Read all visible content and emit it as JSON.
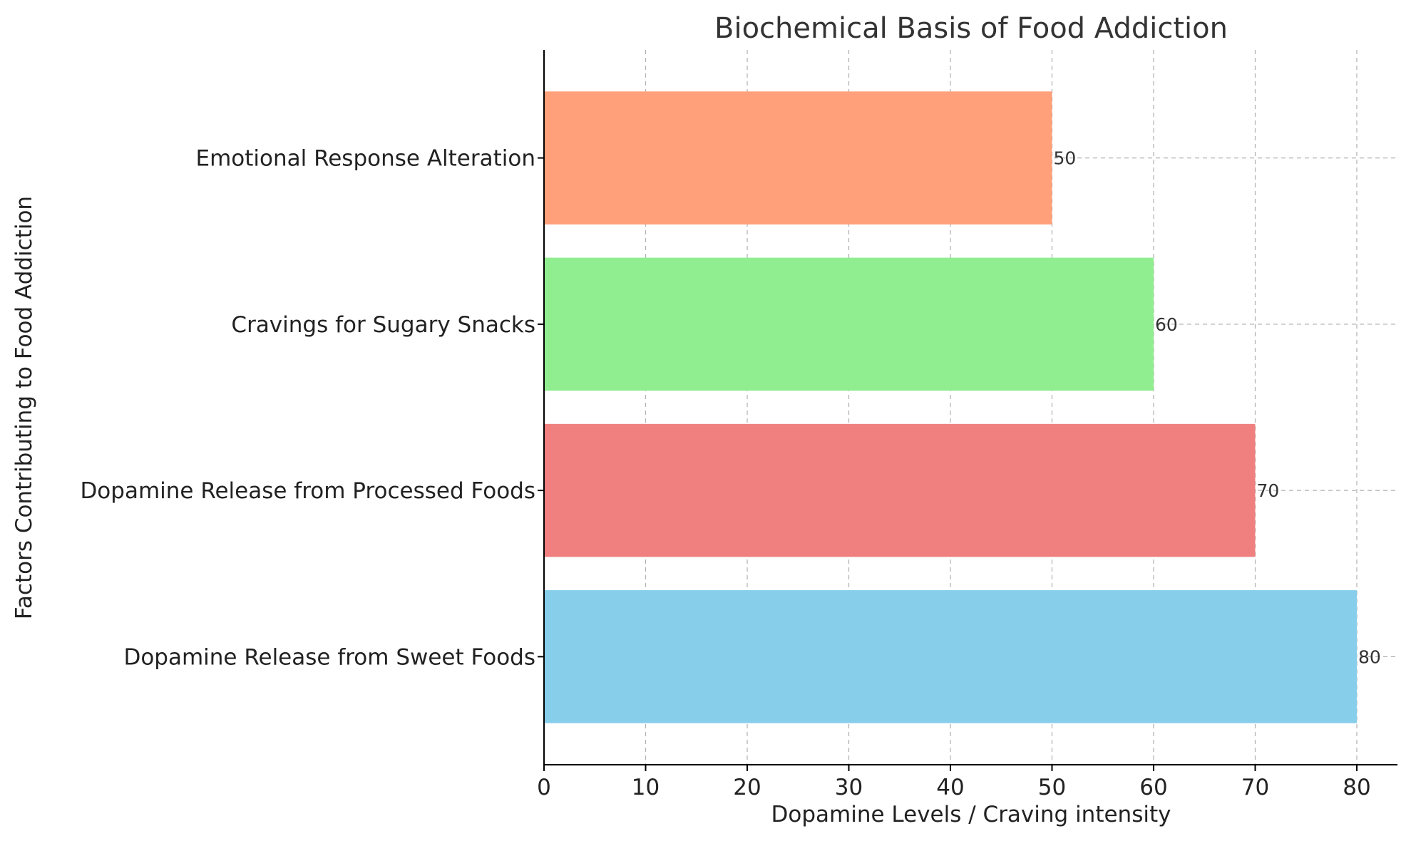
{
  "chart_data": {
    "type": "bar",
    "orientation": "horizontal",
    "title": "Biochemical Basis of Food Addiction",
    "xlabel": "Dopamine Levels / Craving intensity",
    "ylabel": "Factors Contributing to Food Addiction",
    "categories": [
      "Dopamine Release from Sweet Foods",
      "Dopamine Release from Processed Foods",
      "Cravings for Sugary Snacks",
      "Emotional Response Alteration"
    ],
    "values": [
      80,
      70,
      60,
      50
    ],
    "data_labels": [
      "80",
      "70",
      "60",
      "50"
    ],
    "colors": [
      "#87CEEB",
      "#F08080",
      "#90EE90",
      "#FFA07A"
    ],
    "xlim": [
      0,
      84
    ],
    "xticks": [
      0,
      10,
      20,
      30,
      40,
      50,
      60,
      70,
      80
    ],
    "xtick_labels": [
      "0",
      "10",
      "20",
      "30",
      "40",
      "50",
      "60",
      "70",
      "80"
    ],
    "grid": true,
    "grid_style": "dashed",
    "grid_color": "#b0b0b0",
    "legend": "none"
  }
}
